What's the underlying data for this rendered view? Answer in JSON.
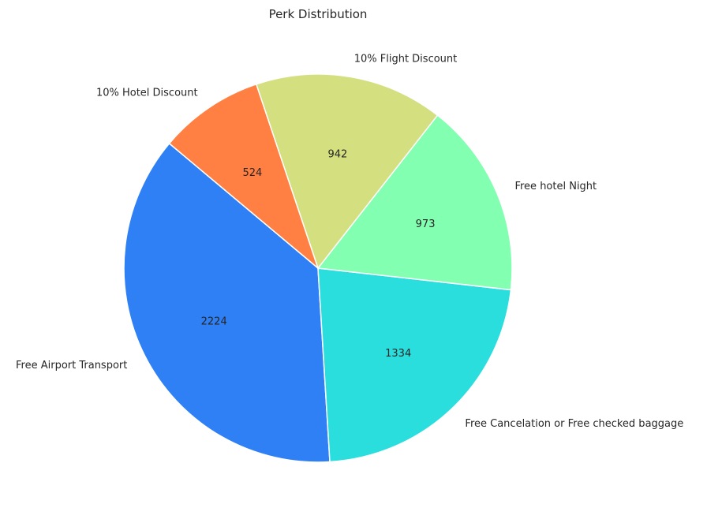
{
  "chart_data": {
    "type": "pie",
    "title": "Perk Distribution",
    "categories": [
      "Free Airport Transport",
      "Free Cancelation or Free checked baggage",
      "Free hotel Night",
      "10% Flight Discount",
      "10% Hotel Discount"
    ],
    "values": [
      2224,
      1334,
      973,
      942,
      524
    ],
    "colors": [
      "#2f80f5",
      "#2adede",
      "#82ffb0",
      "#d4df80",
      "#ff8042"
    ],
    "start_angle_deg": 140,
    "direction": "counterclockwise"
  }
}
